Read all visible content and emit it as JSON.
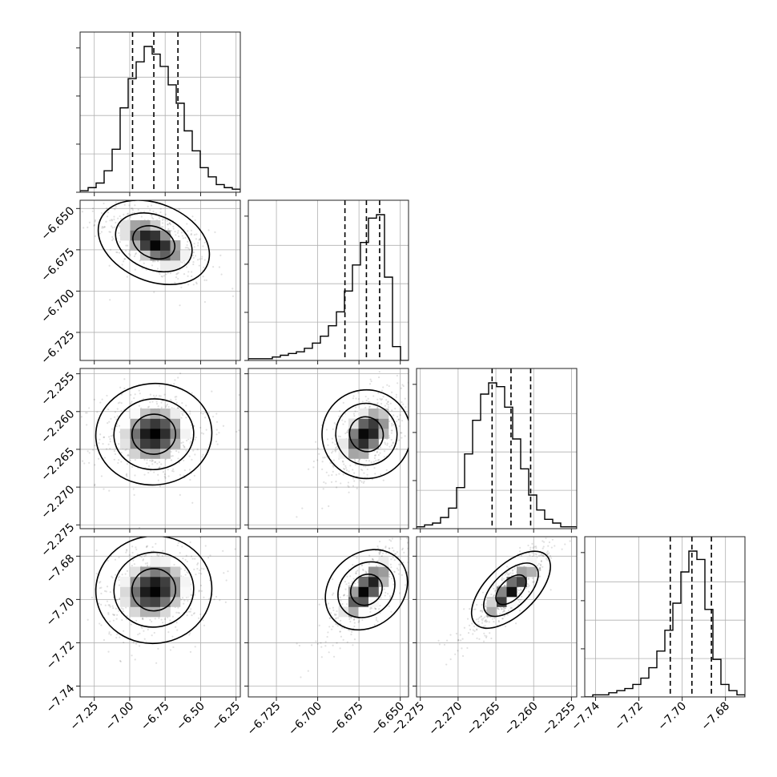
{
  "chart_data": {
    "type": "corner",
    "grid": true,
    "parameters": [
      {
        "range": [
          -7.35,
          -6.22
        ],
        "ticks": [
          -7.25,
          -7.0,
          -6.75,
          -6.5,
          -6.25
        ],
        "tick_labels": [
          "−7.25",
          "−7.00",
          "−6.75",
          "−6.50",
          "−6.25"
        ],
        "quantiles": [
          -6.98,
          -6.83,
          -6.66
        ],
        "hist_counts": [
          1,
          3,
          6,
          14,
          28,
          55,
          74,
          85,
          95,
          90,
          82,
          70,
          58,
          40,
          27,
          16,
          10,
          5,
          3,
          2
        ]
      },
      {
        "range": [
          -6.742,
          -6.645
        ],
        "ticks": [
          -6.725,
          -6.7,
          -6.675,
          -6.65
        ],
        "tick_labels": [
          "−6.725",
          "−6.700",
          "−6.675",
          "−6.650"
        ],
        "quantiles": [
          -6.6835,
          -6.6705,
          -6.6625
        ],
        "hist_counts": [
          1,
          1,
          1,
          2,
          3,
          4,
          5,
          7,
          10,
          14,
          20,
          28,
          40,
          55,
          68,
          82,
          84,
          48,
          8,
          0
        ]
      },
      {
        "range": [
          -2.2755,
          -2.2543
        ],
        "ticks": [
          -2.275,
          -2.27,
          -2.265,
          -2.26,
          -2.255
        ],
        "tick_labels": [
          "−2.275",
          "−2.270",
          "−2.265",
          "−2.260",
          "−2.255"
        ],
        "quantiles": [
          -2.2655,
          -2.263,
          -2.2604
        ],
        "hist_counts": [
          1,
          2,
          3,
          6,
          11,
          22,
          40,
          58,
          72,
          78,
          76,
          65,
          48,
          32,
          18,
          10,
          5,
          3,
          1,
          1
        ]
      },
      {
        "range": [
          -7.745,
          -7.671
        ],
        "ticks": [
          -7.74,
          -7.72,
          -7.7,
          -7.68
        ],
        "tick_labels": [
          "−7.74",
          "−7.72",
          "−7.70",
          "−7.68"
        ],
        "quantiles": [
          -7.7055,
          -7.6955,
          -7.6865
        ],
        "hist_counts": [
          0,
          1,
          1,
          2,
          3,
          4,
          6,
          9,
          14,
          22,
          32,
          45,
          60,
          70,
          66,
          42,
          18,
          6,
          3,
          1
        ]
      }
    ],
    "pairs": [
      {
        "row": 1,
        "col": 0,
        "rho": -0.55
      },
      {
        "row": 2,
        "col": 0,
        "rho": 0.1
      },
      {
        "row": 2,
        "col": 1,
        "rho": 0.5
      },
      {
        "row": 3,
        "col": 0,
        "rho": 0.15
      },
      {
        "row": 3,
        "col": 1,
        "rho": 0.75
      },
      {
        "row": 3,
        "col": 2,
        "rho": 0.9
      }
    ]
  }
}
